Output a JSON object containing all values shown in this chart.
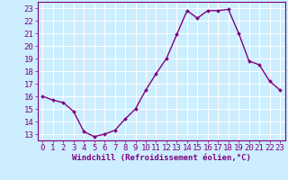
{
  "hours": [
    0,
    1,
    2,
    3,
    4,
    5,
    6,
    7,
    8,
    9,
    10,
    11,
    12,
    13,
    14,
    15,
    16,
    17,
    18,
    19,
    20,
    21,
    22,
    23
  ],
  "values": [
    16.0,
    15.7,
    15.5,
    14.8,
    13.2,
    12.8,
    13.0,
    13.3,
    14.2,
    15.0,
    16.5,
    17.8,
    19.0,
    20.9,
    22.8,
    22.2,
    22.8,
    22.8,
    22.9,
    21.0,
    18.8,
    18.5,
    17.2,
    16.5
  ],
  "line_color": "#800080",
  "marker": "D",
  "marker_size": 2.0,
  "bg_color": "#cceeff",
  "grid_color": "#ffffff",
  "ylabel_ticks": [
    13,
    14,
    15,
    16,
    17,
    18,
    19,
    20,
    21,
    22,
    23
  ],
  "xlabel": "Windchill (Refroidissement éolien,°C)",
  "ylim": [
    12.5,
    23.5
  ],
  "xlim": [
    -0.5,
    23.5
  ],
  "font_color": "#800080",
  "font_size": 6.5,
  "xlabel_size": 6.5,
  "linewidth": 1.0
}
